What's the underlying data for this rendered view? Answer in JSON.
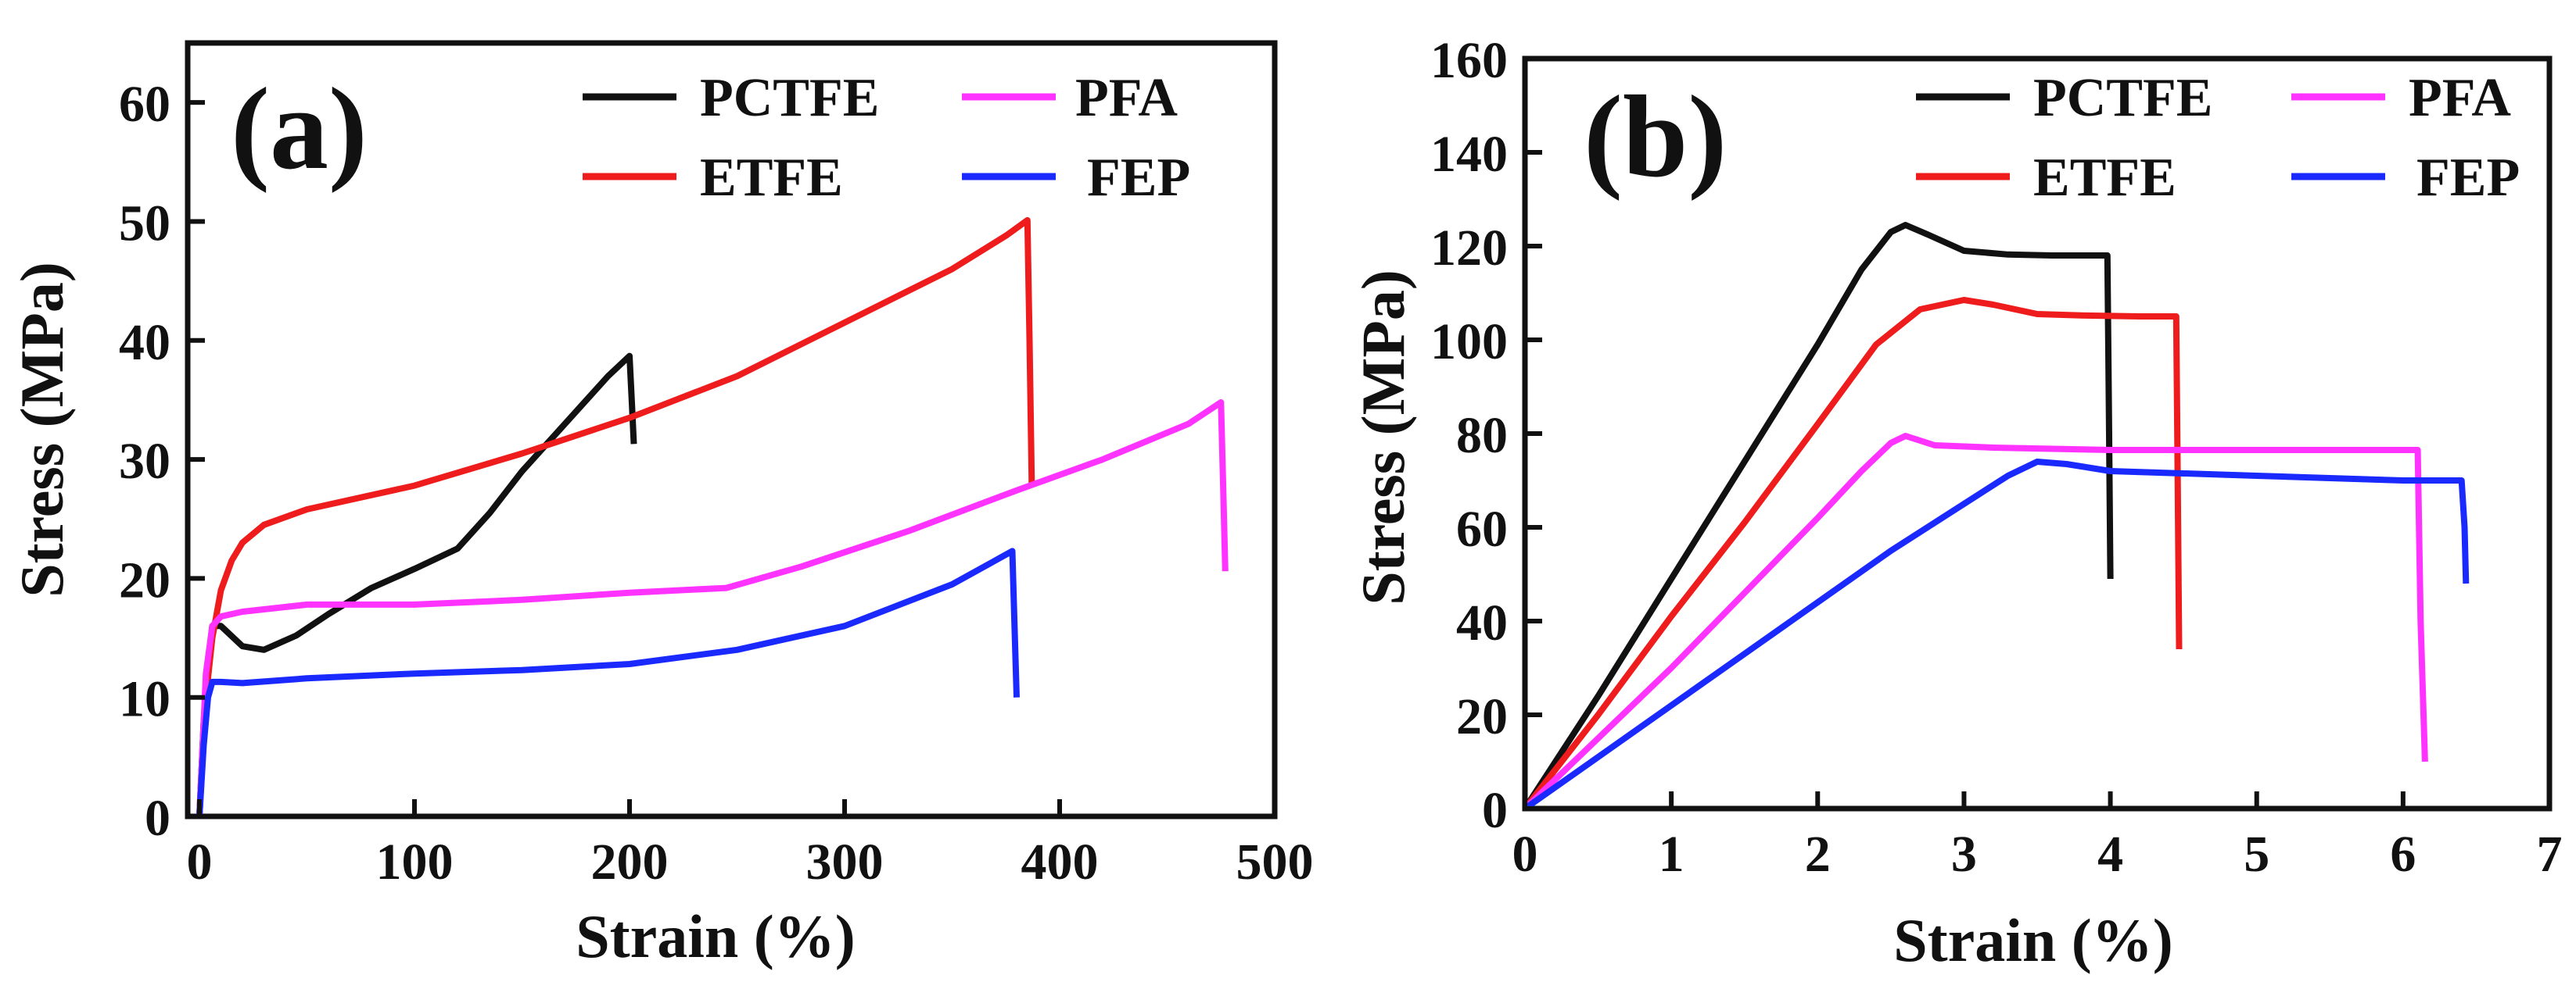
{
  "figure": {
    "description": ""
  },
  "chart_data": [
    {
      "type": "line",
      "panel_label": "(a)",
      "xlabel": "Strain (%)",
      "ylabel": "Stress (MPa)",
      "xlim": [
        0,
        500
      ],
      "ylim": [
        0,
        65
      ],
      "xticks": [
        0,
        100,
        200,
        300,
        400,
        500
      ],
      "yticks": [
        0,
        10,
        20,
        30,
        40,
        50,
        60
      ],
      "legend_placement": "top-right",
      "series": [
        {
          "name": "PCTFE",
          "color": "#111111",
          "x": [
            0,
            2,
            4,
            6,
            10,
            20,
            30,
            45,
            60,
            80,
            100,
            120,
            135,
            150,
            170,
            190,
            200,
            201,
            202
          ],
          "y": [
            0,
            8,
            13,
            16,
            16,
            14.3,
            14.0,
            15.2,
            17.0,
            19.2,
            20.8,
            22.5,
            25.5,
            29.0,
            33.0,
            37.0,
            38.7,
            35.0,
            31.3
          ]
        },
        {
          "name": "ETFE",
          "color": "#ee1c1c",
          "x": [
            0,
            3,
            6,
            10,
            15,
            20,
            30,
            50,
            100,
            150,
            200,
            250,
            300,
            350,
            375,
            385,
            386,
            387
          ],
          "y": [
            0,
            10,
            15,
            19,
            21.5,
            23,
            24.5,
            25.8,
            27.8,
            30.5,
            33.5,
            37.0,
            41.5,
            46.0,
            48.8,
            50.1,
            40,
            28.0
          ]
        },
        {
          "name": "PFA",
          "color": "#ff33ff",
          "x": [
            0,
            3,
            6,
            10,
            20,
            50,
            100,
            150,
            200,
            245,
            280,
            330,
            380,
            420,
            460,
            475,
            476,
            477
          ],
          "y": [
            0,
            12,
            16,
            16.8,
            17.2,
            17.8,
            17.8,
            18.2,
            18.8,
            19.2,
            21.0,
            24.0,
            27.4,
            30.0,
            33.0,
            34.8,
            28,
            20.6
          ]
        },
        {
          "name": "FEP",
          "color": "#1a2aff",
          "x": [
            0,
            2,
            4,
            6,
            10,
            20,
            50,
            100,
            150,
            200,
            250,
            300,
            350,
            378,
            379,
            380
          ],
          "y": [
            0,
            6,
            10,
            11.3,
            11.3,
            11.2,
            11.6,
            12.0,
            12.3,
            12.8,
            14.0,
            16.0,
            19.5,
            22.3,
            16,
            10.0
          ]
        }
      ]
    },
    {
      "type": "line",
      "panel_label": "(b)",
      "xlabel": "Strain (%)",
      "ylabel": "Stress (MPa)",
      "xlim": [
        0,
        7
      ],
      "ylim": [
        0,
        160
      ],
      "xticks": [
        0,
        1,
        2,
        3,
        4,
        5,
        6,
        7
      ],
      "yticks": [
        0,
        20,
        40,
        60,
        80,
        100,
        120,
        140,
        160
      ],
      "legend_placement": "top-right",
      "series": [
        {
          "name": "PCTFE",
          "color": "#111111",
          "x": [
            0,
            0.5,
            1.0,
            1.5,
            2.0,
            2.3,
            2.5,
            2.6,
            2.75,
            3.0,
            3.3,
            3.6,
            3.98,
            3.99,
            4.0
          ],
          "y": [
            0,
            24,
            49,
            74,
            99,
            115,
            123,
            124.5,
            122.5,
            119,
            118.2,
            118,
            118,
            85,
            49
          ]
        },
        {
          "name": "ETFE",
          "color": "#ee1c1c",
          "x": [
            0,
            0.5,
            1.0,
            1.5,
            2.0,
            2.4,
            2.7,
            3.0,
            3.2,
            3.5,
            3.8,
            4.2,
            4.45,
            4.46,
            4.47
          ],
          "y": [
            0,
            20,
            41,
            61,
            82,
            99,
            106.5,
            108.5,
            107.5,
            105.5,
            105.2,
            105,
            105,
            70,
            34
          ]
        },
        {
          "name": "PFA",
          "color": "#ff33ff",
          "x": [
            0,
            0.5,
            1.0,
            1.5,
            2.0,
            2.3,
            2.5,
            2.6,
            2.8,
            3.2,
            4.0,
            5.0,
            6.1,
            6.12,
            6.15
          ],
          "y": [
            0,
            15,
            30,
            46,
            62,
            72,
            78,
            79.5,
            77.5,
            77,
            76.5,
            76.5,
            76.5,
            40,
            10
          ]
        },
        {
          "name": "FEP",
          "color": "#1a2aff",
          "x": [
            0,
            0.5,
            1.0,
            1.5,
            2.0,
            2.5,
            3.0,
            3.3,
            3.5,
            3.7,
            4.0,
            5.0,
            6.0,
            6.4,
            6.42,
            6.43
          ],
          "y": [
            0,
            11,
            22,
            33,
            44,
            55,
            65,
            71,
            74,
            73.5,
            72,
            71,
            70,
            70,
            60,
            48
          ]
        }
      ]
    }
  ]
}
